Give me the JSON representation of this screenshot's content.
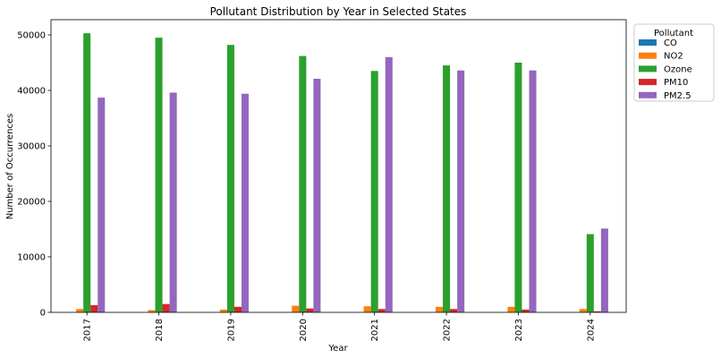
{
  "chart_data": {
    "type": "bar",
    "title": "Pollutant Distribution by Year in Selected States",
    "xlabel": "Year",
    "ylabel": "Number of Occurrences",
    "categories": [
      "2017",
      "2018",
      "2019",
      "2020",
      "2021",
      "2022",
      "2023",
      "2024"
    ],
    "ylim": [
      0,
      52742
    ],
    "yticks": [
      0,
      10000,
      20000,
      30000,
      40000,
      50000
    ],
    "grid": false,
    "legend": {
      "title": "Pollutant",
      "placement": "outside-top-right"
    },
    "series": [
      {
        "name": "CO",
        "color": "#1f77b4",
        "values": [
          20,
          20,
          20,
          20,
          20,
          20,
          20,
          10
        ]
      },
      {
        "name": "NO2",
        "color": "#ff7f0e",
        "values": [
          600,
          400,
          500,
          1200,
          1100,
          1000,
          1000,
          600
        ]
      },
      {
        "name": "Ozone",
        "color": "#2ca02c",
        "values": [
          50300,
          49500,
          48200,
          46200,
          43500,
          44500,
          45000,
          14100
        ]
      },
      {
        "name": "PM10",
        "color": "#d62728",
        "values": [
          1300,
          1500,
          1000,
          700,
          600,
          600,
          500,
          200
        ]
      },
      {
        "name": "PM2.5",
        "color": "#9467bd",
        "values": [
          38700,
          39600,
          39400,
          42100,
          46000,
          43600,
          43600,
          15100
        ]
      }
    ]
  }
}
